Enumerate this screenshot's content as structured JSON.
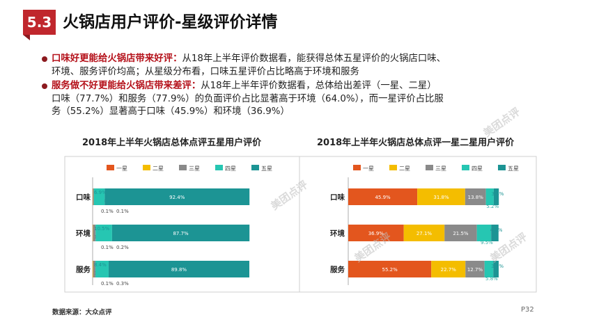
{
  "header": {
    "section": "5.3",
    "title": "火锅店用户评价-星级评价详情"
  },
  "bullets": [
    {
      "highlight": "口味好更能给火锅店带来好评：",
      "lines": [
        "从18年上半年评价数据看，能获得总体五星评价的火锅店口味、",
        "环境、服务评价均高；从星级分布看，口味五星评价占比略高于环境和服务"
      ]
    },
    {
      "highlight": "服务做不好更能给火锅店带来差评：",
      "lines": [
        "从18年上半年评价数据看，总体给出差评（一星、二星）",
        "口味（77.7%）和服务（77.9%）的负面评价占比显著高于环境（64.0%），而一星评价占比服",
        "务（55.2%）显著高于口味（45.9%）和环境（36.9%）"
      ]
    }
  ],
  "legend": [
    "一星",
    "二星",
    "三星",
    "四星",
    "五星"
  ],
  "colors": [
    "#e3561e",
    "#f4bd00",
    "#8a8a8a",
    "#26c6b2",
    "#1c9494"
  ],
  "watermark": "美团点评",
  "chart_data": [
    {
      "type": "bar",
      "stacked": true,
      "orientation": "horizontal",
      "title": "2018年上半年火锅店总体点评五星用户评价",
      "categories": [
        "口味",
        "环境",
        "服务"
      ],
      "series": [
        {
          "name": "一星",
          "values": [
            0.1,
            0.1,
            0.1
          ]
        },
        {
          "name": "二星",
          "values": [
            0.1,
            0.2,
            0.3
          ]
        },
        {
          "name": "三星",
          "values": [
            0.6,
            1.6,
            1.4
          ]
        },
        {
          "name": "四星",
          "values": [
            6.9,
            10.5,
            8.4
          ]
        },
        {
          "name": "五星",
          "values": [
            92.4,
            87.7,
            89.8
          ]
        }
      ]
    },
    {
      "type": "bar",
      "stacked": true,
      "orientation": "horizontal",
      "title": "2018年上半年火锅店总体点评一星二星用户评价",
      "categories": [
        "口味",
        "环境",
        "服务"
      ],
      "series": [
        {
          "name": "一星",
          "values": [
            45.9,
            36.9,
            55.2
          ]
        },
        {
          "name": "二星",
          "values": [
            31.8,
            27.1,
            22.7
          ]
        },
        {
          "name": "三星",
          "values": [
            13.8,
            21.5,
            12.7
          ]
        },
        {
          "name": "四星",
          "values": [
            5.2,
            9.5,
            5.8
          ]
        },
        {
          "name": "五星",
          "values": [
            3.4,
            4.9,
            3.6
          ]
        }
      ]
    }
  ],
  "footer": {
    "source": "数据来源：大众点评",
    "page": "P32"
  }
}
